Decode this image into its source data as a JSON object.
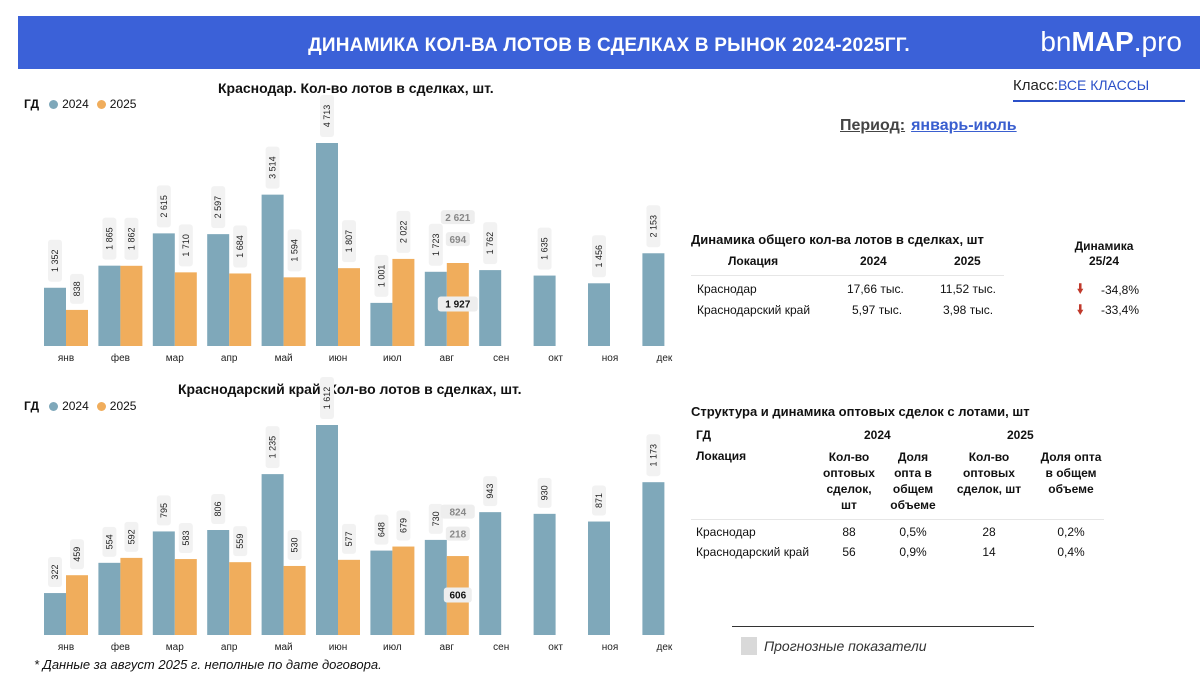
{
  "header": {
    "title": "ДИНАМИКА КОЛ-ВА ЛОТОВ В СДЕЛКАХ В РЫНОК 2024-2025ГГ.",
    "logo_prefix": "bn",
    "logo_bold": "MAP",
    "logo_suffix": ".pro"
  },
  "filters": {
    "class_label": "Класс:",
    "class_value": "ВСЕ КЛАССЫ",
    "period_label": "Период:",
    "period_value": "январь-июль"
  },
  "legend": {
    "gd": "ГД",
    "y2024": "2024",
    "y2025": "2025"
  },
  "colors": {
    "y2024": "#7fa8ba",
    "y2025": "#f0ad5c",
    "forecast": "#d9d9d9",
    "header": "#3b61d8",
    "down": "#c0392b"
  },
  "chart_data": [
    {
      "type": "bar",
      "title": "Краснодар. Кол-во лотов в сделках, шт.",
      "categories": [
        "янв",
        "фев",
        "мар",
        "апр",
        "май",
        "июн",
        "июл",
        "авг",
        "сен",
        "окт",
        "ноя",
        "дек"
      ],
      "series": [
        {
          "name": "2024",
          "values": [
            1352,
            1865,
            2615,
            2597,
            3514,
            4713,
            1001,
            1723,
            1762,
            1635,
            1456,
            2153
          ],
          "labels": [
            "1 352",
            "1 865",
            "2 615",
            "2 597",
            "3 514",
            "4 713",
            "1 001",
            "1 723",
            "1 762",
            "1 635",
            "1 456",
            "2 153"
          ]
        },
        {
          "name": "2025",
          "values": [
            838,
            1862,
            1710,
            1684,
            1594,
            1807,
            2022,
            1927,
            null,
            null,
            null,
            null
          ],
          "labels": [
            "838",
            "1 862",
            "1 710",
            "1 684",
            "1 594",
            "1 807",
            "2 022",
            "1 927",
            "",
            "",
            "",
            ""
          ]
        }
      ],
      "forecast": {
        "category": "авг",
        "value": 694,
        "value_label": "694",
        "total": 2621,
        "total_label": "2 621"
      },
      "ylim": [
        0,
        4713
      ]
    },
    {
      "type": "bar",
      "title": "Краснодарский край. Кол-во лотов в сделках, шт.",
      "categories": [
        "янв",
        "фев",
        "мар",
        "апр",
        "май",
        "июн",
        "июл",
        "авг",
        "сен",
        "окт",
        "ноя",
        "дек"
      ],
      "series": [
        {
          "name": "2024",
          "values": [
            322,
            554,
            795,
            806,
            1235,
            1612,
            648,
            730,
            943,
            930,
            871,
            1173
          ],
          "labels": [
            "322",
            "554",
            "795",
            "806",
            "1 235",
            "1 612",
            "648",
            "730",
            "943",
            "930",
            "871",
            "1 173"
          ]
        },
        {
          "name": "2025",
          "values": [
            459,
            592,
            583,
            559,
            530,
            577,
            679,
            606,
            null,
            null,
            null,
            null
          ],
          "labels": [
            "459",
            "592",
            "583",
            "559",
            "530",
            "577",
            "679",
            "606",
            "",
            "",
            "",
            ""
          ]
        }
      ],
      "forecast": {
        "category": "авг",
        "value": 218,
        "value_label": "218",
        "total": 824,
        "total_label": "824"
      },
      "ylim": [
        0,
        1612
      ]
    }
  ],
  "table1": {
    "title": "Динамика общего кол-ва лотов в сделках, шт",
    "dyn_header": "Динамика 25/24",
    "col_location": "Локация",
    "col_2024": "2024",
    "col_2025": "2025",
    "rows": [
      {
        "loc": "Краснодар",
        "v2024": "17,66 тыс.",
        "v2025": "11,52 тыс.",
        "dyn": "-34,8%"
      },
      {
        "loc": "Краснодарский край",
        "v2024": "5,97 тыс.",
        "v2025": "3,98 тыс.",
        "dyn": "-33,4%"
      }
    ]
  },
  "table2": {
    "title": "Структура и динамика оптовых сделок с лотами, шт",
    "gd": "ГД",
    "y2024": "2024",
    "y2025": "2025",
    "col_location": "Локация",
    "col_count_2024": "Кол-во оптовых сделок, шт",
    "col_share_2024": "Доля опта в общем объеме",
    "col_count_2025": "Кол-во оптовых сделок, шт",
    "col_share_2025": "Доля опта в общем объеме",
    "rows": [
      {
        "loc": "Краснодар",
        "c2024": "88",
        "s2024": "0,5%",
        "c2025": "28",
        "s2025": "0,2%"
      },
      {
        "loc": "Краснодарский край",
        "c2024": "56",
        "s2024": "0,9%",
        "c2025": "14",
        "s2025": "0,4%"
      }
    ]
  },
  "forecast_legend": "Прогнозные показатели",
  "footnote": "* Данные за август 2025 г. неполные по дате договора."
}
